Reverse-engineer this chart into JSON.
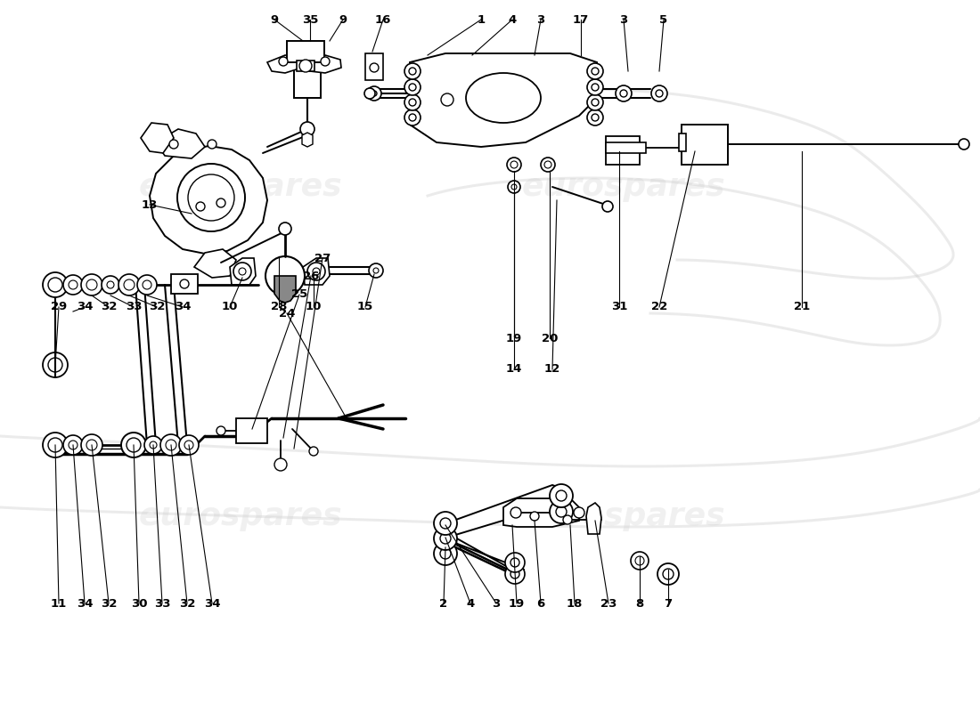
{
  "background_color": "#ffffff",
  "line_color": "#000000",
  "watermark_text_1": "eurospares",
  "watermark_text_2": "eurospares",
  "watermark_color": "#d0d0d0",
  "watermark_alpha": 0.3,
  "silhouette_color": "#c8c8c8",
  "silhouette_alpha": 0.35,
  "figure_width": 11.0,
  "figure_height": 8.0,
  "top_labels": [
    [
      "9",
      308,
      758
    ],
    [
      "35",
      348,
      758
    ],
    [
      "9",
      385,
      758
    ],
    [
      "16",
      430,
      758
    ],
    [
      "1",
      540,
      758
    ],
    [
      "4",
      575,
      758
    ],
    [
      "3",
      607,
      758
    ],
    [
      "17",
      652,
      758
    ],
    [
      "3",
      700,
      758
    ],
    [
      "5",
      745,
      758
    ]
  ],
  "left_top_labels": [
    [
      "29",
      66,
      455
    ],
    [
      "34",
      95,
      455
    ],
    [
      "32",
      122,
      455
    ],
    [
      "33",
      150,
      455
    ],
    [
      "32",
      176,
      455
    ],
    [
      "34",
      205,
      455
    ]
  ],
  "left_bot_labels": [
    [
      "11",
      66,
      122
    ],
    [
      "34",
      95,
      122
    ],
    [
      "32",
      122,
      122
    ],
    [
      "30",
      156,
      122
    ],
    [
      "33",
      182,
      122
    ],
    [
      "32",
      210,
      122
    ],
    [
      "34",
      238,
      122
    ]
  ],
  "mid_labels": [
    [
      "10",
      258,
      455
    ],
    [
      "28",
      313,
      455
    ],
    [
      "10",
      352,
      455
    ],
    [
      "15",
      410,
      455
    ]
  ],
  "right_labels": [
    [
      "19",
      570,
      420
    ],
    [
      "20",
      610,
      420
    ],
    [
      "14",
      575,
      375
    ],
    [
      "12",
      618,
      375
    ],
    [
      "31",
      695,
      455
    ],
    [
      "22",
      738,
      455
    ],
    [
      "21",
      900,
      455
    ]
  ],
  "stab_labels": [
    [
      "27",
      362,
      510
    ],
    [
      "26",
      349,
      490
    ],
    [
      "25",
      336,
      469
    ],
    [
      "24",
      322,
      448
    ]
  ],
  "bot_right_labels": [
    [
      "2",
      498,
      122
    ],
    [
      "4",
      528,
      122
    ],
    [
      "3",
      557,
      122
    ],
    [
      "19",
      580,
      122
    ],
    [
      "6",
      607,
      122
    ],
    [
      "18",
      645,
      122
    ],
    [
      "23",
      683,
      122
    ],
    [
      "8",
      718,
      122
    ],
    [
      "7",
      750,
      122
    ]
  ],
  "misc_labels": [
    [
      "13",
      168,
      570
    ]
  ]
}
